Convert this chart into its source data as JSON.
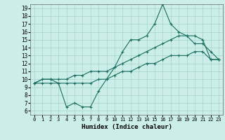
{
  "xlabel": "Humidex (Indice chaleur)",
  "bg_color": "#cceee8",
  "grid_color": "#aad8d0",
  "line_color": "#1a6e60",
  "xlim": [
    -0.5,
    23.5
  ],
  "ylim": [
    5.5,
    19.5
  ],
  "xticks": [
    0,
    1,
    2,
    3,
    4,
    5,
    6,
    7,
    8,
    9,
    10,
    11,
    12,
    13,
    14,
    15,
    16,
    17,
    18,
    19,
    20,
    21,
    22,
    23
  ],
  "yticks": [
    6,
    7,
    8,
    9,
    10,
    11,
    12,
    13,
    14,
    15,
    16,
    17,
    18,
    19
  ],
  "line1_x": [
    0,
    1,
    2,
    3,
    4,
    5,
    6,
    7,
    8,
    9,
    10,
    11,
    12,
    13,
    14,
    15,
    16,
    17,
    18,
    19,
    20,
    21,
    22,
    23
  ],
  "line1_y": [
    9.5,
    10.0,
    10.0,
    9.5,
    6.5,
    7.0,
    6.5,
    6.5,
    8.5,
    10.0,
    11.5,
    13.5,
    15.0,
    15.0,
    15.5,
    17.0,
    19.5,
    17.0,
    16.0,
    15.5,
    14.5,
    14.5,
    13.5,
    12.5
  ],
  "line2_x": [
    0,
    1,
    2,
    3,
    4,
    5,
    6,
    7,
    8,
    9,
    10,
    11,
    12,
    13,
    14,
    15,
    16,
    17,
    18,
    19,
    20,
    21,
    22,
    23
  ],
  "line2_y": [
    9.5,
    10.0,
    10.0,
    10.0,
    10.0,
    10.5,
    10.5,
    11.0,
    11.0,
    11.0,
    11.5,
    12.0,
    12.5,
    13.0,
    13.5,
    14.0,
    14.5,
    15.0,
    15.5,
    15.5,
    15.5,
    15.0,
    12.5,
    12.5
  ],
  "line3_x": [
    0,
    1,
    2,
    3,
    4,
    5,
    6,
    7,
    8,
    9,
    10,
    11,
    12,
    13,
    14,
    15,
    16,
    17,
    18,
    19,
    20,
    21,
    22,
    23
  ],
  "line3_y": [
    9.5,
    9.5,
    9.5,
    9.5,
    9.5,
    9.5,
    9.5,
    9.5,
    10.0,
    10.0,
    10.5,
    11.0,
    11.0,
    11.5,
    12.0,
    12.0,
    12.5,
    13.0,
    13.0,
    13.0,
    13.5,
    13.5,
    12.5,
    12.5
  ],
  "marker": "+",
  "markersize": 3.5,
  "linewidth": 0.8,
  "tick_labelsize": 5.5,
  "xlabel_fontsize": 6.5
}
